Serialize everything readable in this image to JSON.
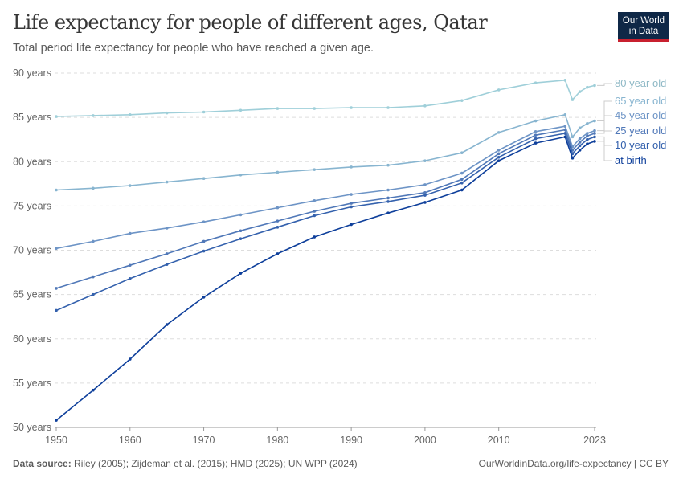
{
  "header": {
    "title": "Life expectancy for people of different ages, Qatar",
    "subtitle": "Total period life expectancy for people who have reached a given age.",
    "logo": "Our World in Data"
  },
  "footer": {
    "source_label": "Data source:",
    "source": "Riley (2005); Zijdeman et al. (2015); HMD (2025); UN WPP (2024)",
    "link": "OurWorldinData.org/life-expectancy | CC BY"
  },
  "chart_data": {
    "type": "line",
    "title": "Life expectancy for people of different ages, Qatar",
    "ylim": [
      50,
      90
    ],
    "xlim": [
      1950,
      2023
    ],
    "y_ticks": [
      50,
      55,
      60,
      65,
      70,
      75,
      80,
      85,
      90
    ],
    "y_tick_labels": [
      "50 years",
      "55 years",
      "60 years",
      "65 years",
      "70 years",
      "75 years",
      "80 years",
      "85 years",
      "90 years"
    ],
    "x_ticks": [
      1950,
      1960,
      1970,
      1980,
      1990,
      2000,
      2010,
      2023
    ],
    "x_tick_labels": [
      "1950",
      "1960",
      "1970",
      "1980",
      "1990",
      "2000",
      "2010",
      "2023"
    ],
    "grid": "horizontal dashed",
    "legend": "right, line-end labels",
    "x": [
      1950,
      1955,
      1960,
      1965,
      1970,
      1975,
      1980,
      1985,
      1990,
      1995,
      2000,
      2005,
      2010,
      2015,
      2019,
      2020,
      2021,
      2022,
      2023
    ],
    "series": [
      {
        "name": "80 year old",
        "color": "#9fcfd9",
        "values": [
          85.1,
          85.2,
          85.3,
          85.5,
          85.6,
          85.8,
          86.0,
          86.0,
          86.1,
          86.1,
          86.3,
          86.9,
          88.1,
          88.9,
          89.2,
          87.0,
          87.9,
          88.4,
          88.6
        ]
      },
      {
        "name": "65 year old",
        "color": "#88b5d0",
        "values": [
          76.8,
          77.0,
          77.3,
          77.7,
          78.1,
          78.5,
          78.8,
          79.1,
          79.4,
          79.6,
          80.1,
          81.0,
          83.3,
          84.6,
          85.3,
          82.8,
          83.8,
          84.3,
          84.6
        ]
      },
      {
        "name": "45 year old",
        "color": "#6d94c6",
        "values": [
          70.2,
          71.0,
          71.9,
          72.5,
          73.2,
          74.0,
          74.8,
          75.6,
          76.3,
          76.8,
          77.4,
          78.7,
          81.3,
          83.4,
          84.0,
          81.7,
          82.6,
          83.2,
          83.5
        ]
      },
      {
        "name": "25 year old",
        "color": "#5078b8",
        "values": [
          65.7,
          67.0,
          68.3,
          69.6,
          71.0,
          72.2,
          73.3,
          74.4,
          75.3,
          75.9,
          76.5,
          78.0,
          80.9,
          83.0,
          83.6,
          81.3,
          82.2,
          82.9,
          83.2
        ]
      },
      {
        "name": "10 year old",
        "color": "#3461ad",
        "values": [
          63.2,
          65.0,
          66.8,
          68.4,
          69.9,
          71.3,
          72.6,
          73.9,
          74.9,
          75.5,
          76.2,
          77.6,
          80.5,
          82.6,
          83.2,
          80.9,
          81.8,
          82.5,
          82.8
        ]
      },
      {
        "name": "at birth",
        "color": "#0e3f9b",
        "values": [
          50.8,
          54.2,
          57.7,
          61.6,
          64.7,
          67.4,
          69.6,
          71.5,
          72.9,
          74.2,
          75.4,
          76.8,
          80.1,
          82.1,
          82.8,
          80.4,
          81.3,
          82.0,
          82.3
        ]
      }
    ]
  }
}
